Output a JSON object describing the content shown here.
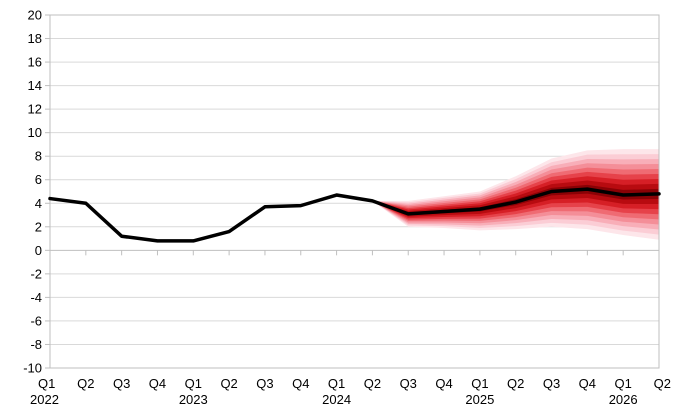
{
  "chart_data": {
    "type": "line",
    "title": "",
    "xlabel": "",
    "ylabel": "",
    "ylim": [
      -10,
      20
    ],
    "yticks": [
      -10,
      -8,
      -6,
      -4,
      -2,
      0,
      2,
      4,
      6,
      8,
      10,
      12,
      14,
      16,
      18,
      20
    ],
    "grid": "horizontal",
    "legend": "none",
    "categories": [
      "Q1",
      "Q2",
      "Q3",
      "Q4",
      "Q1",
      "Q2",
      "Q3",
      "Q4",
      "Q1",
      "Q2",
      "Q3",
      "Q4",
      "Q1",
      "Q2",
      "Q3",
      "Q4",
      "Q1",
      "Q2"
    ],
    "year_labels": [
      {
        "index": 0,
        "label": "2022"
      },
      {
        "index": 4,
        "label": "2023"
      },
      {
        "index": 8,
        "label": "2024"
      },
      {
        "index": 12,
        "label": "2025"
      },
      {
        "index": 16,
        "label": "2026"
      }
    ],
    "series": [
      {
        "values": [
          4.4,
          4.0,
          1.2,
          0.8,
          0.8,
          1.6,
          3.7,
          3.8,
          4.7,
          4.2,
          3.1,
          3.3,
          3.5,
          4.1,
          5.0,
          5.2,
          4.7,
          4.8
        ],
        "color": "#000000"
      }
    ],
    "fan": {
      "start_index": 9,
      "center": [
        4.2,
        3.1,
        3.3,
        3.5,
        4.1,
        5.0,
        5.2,
        4.7,
        4.8
      ],
      "outer_low": [
        4.2,
        2.0,
        1.9,
        1.7,
        1.8,
        2.0,
        1.8,
        1.3,
        0.9
      ],
      "outer_high": [
        4.2,
        4.2,
        4.6,
        5.0,
        6.3,
        7.8,
        8.5,
        8.6,
        8.6
      ],
      "colors": [
        "#fde6ea",
        "#fbcdd5",
        "#f8aeb8",
        "#f48e98",
        "#ef6b73",
        "#e6424a",
        "#d61f26",
        "#b80b10",
        "#8a0206"
      ]
    },
    "colors": {
      "axis": "#bfbfbf",
      "grid": "#d9d9d9",
      "line": "#000000"
    }
  }
}
